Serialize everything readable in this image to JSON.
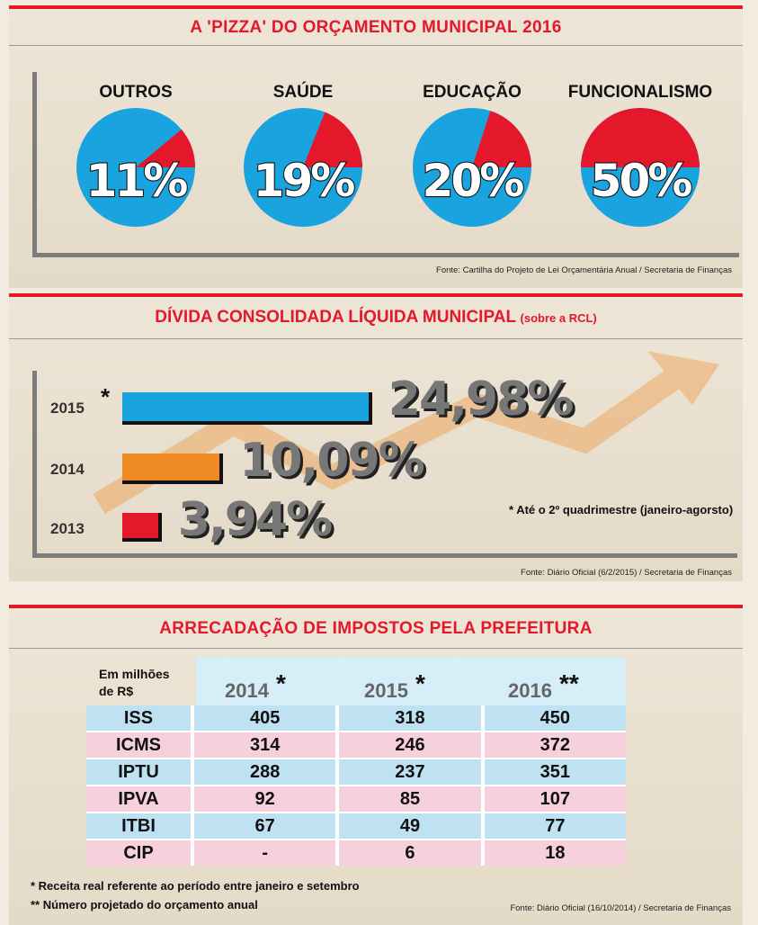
{
  "section1": {
    "title": "A 'PIZZA' DO ORÇAMENTO MUNICIPAL 2016",
    "source": "Fonte: Cartilha do Projeto de Lei Orçamentária Anual / Secretaria de Finanças"
  },
  "section2": {
    "title": "DÍVIDA CONSOLIDADA LÍQUIDA MUNICIPAL",
    "title_suffix": "(sobre a RCL)",
    "note": "* Até o 2º quadrimestre (janeiro-agorsto)",
    "source": "Fonte: Diário Oficial (6/2/2015) / Secretaria de Finanças"
  },
  "section3": {
    "title": "ARRECADAÇÃO DE IMPOSTOS PELA PREFEITURA",
    "unit_label_1": "Em milhões",
    "unit_label_2": "de R$",
    "footnote_1": "* Receita real referente ao período entre janeiro e setembro",
    "footnote_2": "** Número projetado do orçamento anual",
    "source": "Fonte: Diário Oficial (16/10/2014) / Secretaria de Finanças"
  },
  "chart_data": [
    {
      "type": "pie",
      "title": "A 'PIZZA' DO ORÇAMENTO MUNICIPAL 2016",
      "slices": [
        {
          "label": "OUTROS",
          "value": 11,
          "text": "11%"
        },
        {
          "label": "SAÚDE",
          "value": 19,
          "text": "19%"
        },
        {
          "label": "EDUCAÇÃO",
          "value": 20,
          "text": "20%"
        },
        {
          "label": "FUNCIONALISMO",
          "value": 50,
          "text": "50%"
        }
      ],
      "colors": {
        "slice": "#e4182a",
        "rest": "#19a4df"
      }
    },
    {
      "type": "bar",
      "title": "DÍVIDA CONSOLIDADA LÍQUIDA MUNICIPAL (sobre a RCL)",
      "categories": [
        "2015",
        "2014",
        "2013"
      ],
      "values": [
        24.98,
        10.09,
        3.94
      ],
      "labels": [
        "24,98%",
        "10,09%",
        "3,94%"
      ],
      "markers": [
        "*",
        "",
        ""
      ],
      "colors": [
        "#19a4df",
        "#f08a24",
        "#e4182a"
      ]
    },
    {
      "type": "table",
      "title": "ARRECADAÇÃO DE IMPOSTOS PELA PREFEITURA",
      "columns": [
        {
          "year": "2014",
          "mark": "*"
        },
        {
          "year": "2015",
          "mark": "*"
        },
        {
          "year": "2016",
          "mark": "**"
        }
      ],
      "rows": [
        {
          "tax": "ISS",
          "values": [
            "405",
            "318",
            "450"
          ]
        },
        {
          "tax": "ICMS",
          "values": [
            "314",
            "246",
            "372"
          ]
        },
        {
          "tax": "IPTU",
          "values": [
            "288",
            "237",
            "351"
          ]
        },
        {
          "tax": "IPVA",
          "values": [
            "92",
            "85",
            "107"
          ]
        },
        {
          "tax": "ITBI",
          "values": [
            "67",
            "49",
            "77"
          ]
        },
        {
          "tax": "CIP",
          "values": [
            "-",
            "6",
            "18"
          ]
        }
      ]
    }
  ]
}
